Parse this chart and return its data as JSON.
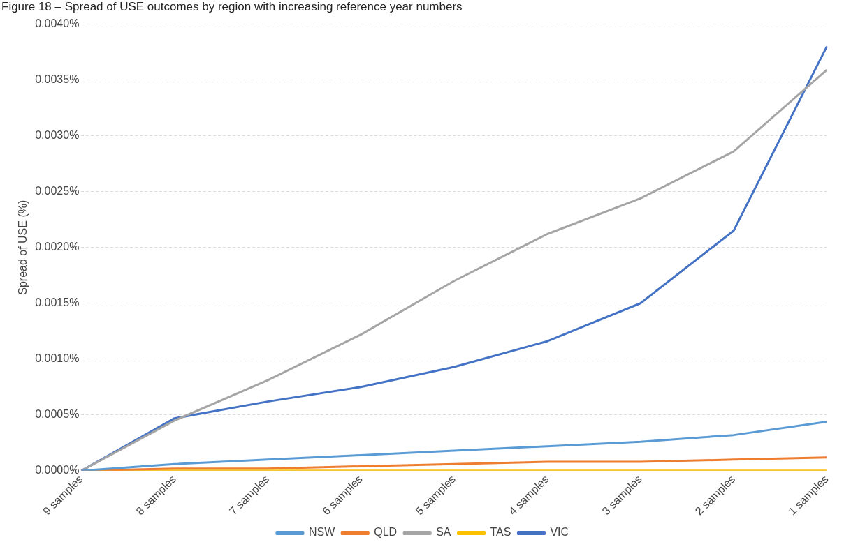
{
  "chart_data": {
    "type": "line",
    "title": "Figure 18 – Spread of USE outcomes by region with increasing reference year numbers",
    "ylabel": "Spread of USE (%)",
    "categories": [
      "9 samples",
      "8 samples",
      "7 samples",
      "6 samples",
      "5 samples",
      "4 samples",
      "3 samples",
      "2 samples",
      "1 samples"
    ],
    "series": [
      {
        "name": "NSW",
        "color": "#5b9bd5",
        "values": [
          0,
          6e-05,
          0.0001,
          0.00014,
          0.00018,
          0.00022,
          0.00026,
          0.00032,
          0.00044
        ]
      },
      {
        "name": "QLD",
        "color": "#ed7d31",
        "values": [
          0,
          2e-05,
          2e-05,
          4e-05,
          6e-05,
          8e-05,
          8e-05,
          0.0001,
          0.00012
        ]
      },
      {
        "name": "SA",
        "color": "#a5a5a5",
        "values": [
          0,
          0.00045,
          0.00081,
          0.00122,
          0.0017,
          0.00212,
          0.00244,
          0.00286,
          0.00359
        ]
      },
      {
        "name": "TAS",
        "color": "#ffc000",
        "values": [
          0,
          0,
          0,
          0,
          0,
          0,
          0,
          0,
          0
        ]
      },
      {
        "name": "VIC",
        "color": "#4472c4",
        "values": [
          0,
          0.00047,
          0.00062,
          0.00075,
          0.00093,
          0.00116,
          0.0015,
          0.00215,
          0.0038
        ]
      }
    ],
    "ylim": [
      0,
      0.004
    ],
    "yticks": [
      {
        "value": 0,
        "label": "0.0000%"
      },
      {
        "value": 0.0005,
        "label": "0.0005%"
      },
      {
        "value": 0.001,
        "label": "0.0010%"
      },
      {
        "value": 0.0015,
        "label": "0.0015%"
      },
      {
        "value": 0.002,
        "label": "0.0020%"
      },
      {
        "value": 0.0025,
        "label": "0.0025%"
      },
      {
        "value": 0.003,
        "label": "0.0030%"
      },
      {
        "value": 0.0035,
        "label": "0.0035%"
      },
      {
        "value": 0.004,
        "label": "0.0040%"
      }
    ],
    "grid": "y",
    "legend": "bottom",
    "marker": "none",
    "line_style": "solid"
  }
}
